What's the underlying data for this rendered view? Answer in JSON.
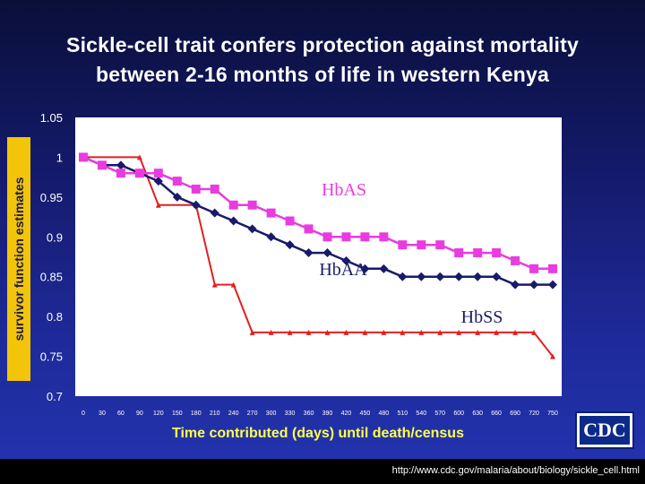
{
  "slide": {
    "title_line1": "Sickle-cell trait confers protection against mortality",
    "title_line2": "between 2-16 months of life in western Kenya",
    "source_url": "http://www.cdc.gov/malaria/about/biology/sickle_cell.html",
    "logo_text": "CDC"
  },
  "colors": {
    "hbas": "#e83ce0",
    "hbaa": "#1a1a6a",
    "hbss": "#e02020",
    "plot_bg": "#ffffff",
    "ylabel_bg": "#f2c40a",
    "xlabel": "#ffff4a"
  },
  "chart_data": {
    "type": "line",
    "title": "",
    "xlabel": "Time contributed (days) until death/census",
    "ylabel": "survivor function estimates",
    "xlim": [
      0,
      750
    ],
    "ylim": [
      0.7,
      1.05
    ],
    "grid": false,
    "x_ticks": [
      0,
      30,
      60,
      90,
      120,
      150,
      180,
      210,
      240,
      270,
      300,
      330,
      360,
      390,
      420,
      450,
      480,
      510,
      540,
      570,
      600,
      630,
      660,
      690,
      720,
      750
    ],
    "y_ticks": [
      1.05,
      1,
      0.95,
      0.9,
      0.85,
      0.8,
      0.75,
      0.7
    ],
    "series": [
      {
        "name": "HbAS",
        "marker": "square",
        "x": [
          0,
          30,
          60,
          90,
          120,
          150,
          180,
          210,
          240,
          270,
          300,
          330,
          360,
          390,
          420,
          450,
          480,
          510,
          540,
          570,
          600,
          630,
          660,
          690,
          720,
          750
        ],
        "y": [
          1.0,
          0.99,
          0.98,
          0.98,
          0.98,
          0.97,
          0.96,
          0.96,
          0.94,
          0.94,
          0.93,
          0.92,
          0.91,
          0.9,
          0.9,
          0.9,
          0.9,
          0.89,
          0.89,
          0.89,
          0.88,
          0.88,
          0.88,
          0.87,
          0.86,
          0.86
        ]
      },
      {
        "name": "HbAA",
        "marker": "diamond",
        "x": [
          0,
          30,
          60,
          90,
          120,
          150,
          180,
          210,
          240,
          270,
          300,
          330,
          360,
          390,
          420,
          450,
          480,
          510,
          540,
          570,
          600,
          630,
          660,
          690,
          720,
          750
        ],
        "y": [
          1.0,
          0.99,
          0.99,
          0.98,
          0.97,
          0.95,
          0.94,
          0.93,
          0.92,
          0.91,
          0.9,
          0.89,
          0.88,
          0.88,
          0.87,
          0.86,
          0.86,
          0.85,
          0.85,
          0.85,
          0.85,
          0.85,
          0.85,
          0.84,
          0.84,
          0.84
        ]
      },
      {
        "name": "HbSS",
        "marker": "triangle",
        "x": [
          0,
          90,
          120,
          180,
          210,
          240,
          270,
          300,
          330,
          360,
          390,
          420,
          450,
          480,
          510,
          540,
          570,
          600,
          630,
          660,
          690,
          720,
          750
        ],
        "y": [
          1.0,
          1.0,
          0.94,
          0.94,
          0.84,
          0.84,
          0.78,
          0.78,
          0.78,
          0.78,
          0.78,
          0.78,
          0.78,
          0.78,
          0.78,
          0.78,
          0.78,
          0.78,
          0.78,
          0.78,
          0.78,
          0.78,
          0.75
        ]
      }
    ]
  }
}
